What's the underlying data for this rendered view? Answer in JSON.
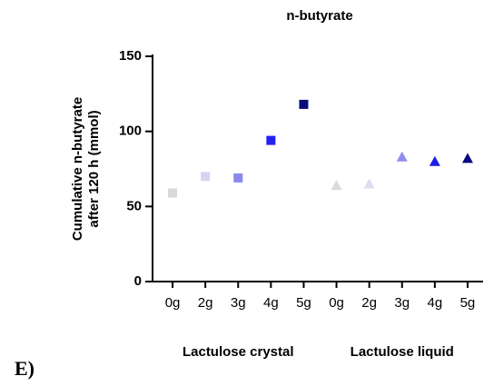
{
  "panel_label": "E)",
  "chart_data": {
    "type": "scatter",
    "title": "n-butyrate",
    "ylabel": [
      "Cumulative n-butyrate",
      "after 120 h (mmol)"
    ],
    "categories": [
      "0g",
      "2g",
      "3g",
      "4g",
      "5g",
      "0g",
      "2g",
      "3g",
      "4g",
      "5g"
    ],
    "series": [
      {
        "name": "Lactulose crystal",
        "marker": "square",
        "colors": [
          "#d8d8d8",
          "#d4d4f4",
          "#8a8aee",
          "#2222f0",
          "#0b0b7a",
          null,
          null,
          null,
          null,
          null
        ],
        "values": [
          59,
          70,
          69,
          94,
          118,
          null,
          null,
          null,
          null,
          null
        ]
      },
      {
        "name": "Lactulose liquid",
        "marker": "triangle",
        "colors": [
          null,
          null,
          null,
          null,
          null,
          "#dadada",
          "#dcdcf2",
          "#8e8eec",
          "#1c1ce6",
          "#0a0a80"
        ],
        "values": [
          null,
          null,
          null,
          null,
          null,
          64,
          65,
          83,
          80,
          82
        ]
      }
    ],
    "ylim": [
      0,
      150
    ],
    "yticks": [
      0,
      50,
      100,
      150
    ]
  }
}
